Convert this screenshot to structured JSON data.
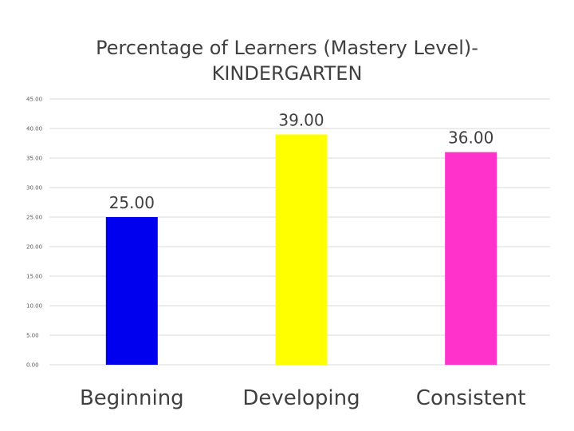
{
  "chart_data": {
    "type": "bar",
    "title": "Percentage of Learners (Mastery Level)-\nKINDERGARTEN",
    "categories": [
      "Beginning",
      "Developing",
      "Consistent"
    ],
    "values": [
      25.0,
      39.0,
      36.0
    ],
    "data_labels": [
      "25.00",
      "39.00",
      "36.00"
    ],
    "colors": [
      "#0000ee",
      "#ffff00",
      "#ff33cc"
    ],
    "xlabel": "",
    "ylabel": "",
    "ylim": [
      0,
      45
    ],
    "yticks": [
      0,
      5,
      10,
      15,
      20,
      25,
      30,
      35,
      40,
      45
    ],
    "ytick_labels": [
      "0.00",
      "5.00",
      "10.00",
      "15.00",
      "20.00",
      "25.00",
      "30.00",
      "35.00",
      "40.00",
      "45.00"
    ],
    "grid": true,
    "legend": "none"
  }
}
